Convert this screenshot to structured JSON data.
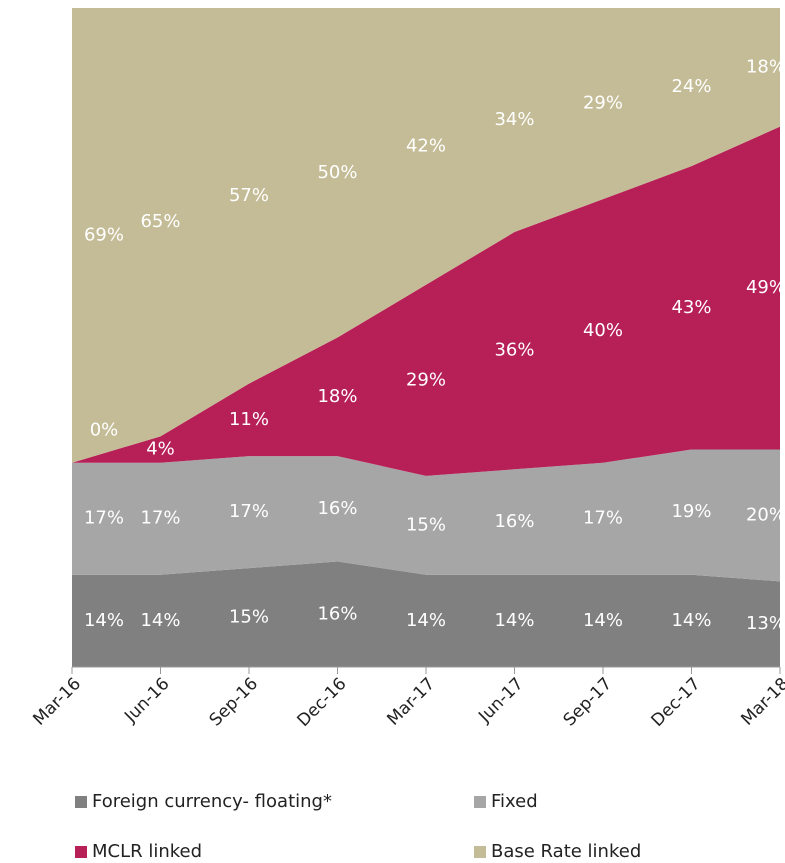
{
  "chart_data": {
    "type": "stacked_area",
    "categories": [
      "Mar-16",
      "Jun-16",
      "Sep-16",
      "Dec-16",
      "Mar-17",
      "Jun-17",
      "Sep-17",
      "Dec-17",
      "Mar-18"
    ],
    "ylim": [
      0,
      100
    ],
    "series": [
      {
        "name": "Foreign currency- floating*",
        "color": "#808080",
        "values": [
          14,
          14,
          15,
          16,
          14,
          14,
          14,
          14,
          13
        ],
        "value_labels": [
          "14%",
          "14%",
          "15%",
          "16%",
          "14%",
          "14%",
          "14%",
          "14%",
          "13%"
        ]
      },
      {
        "name": "Fixed",
        "color": "#a6a6a6",
        "values": [
          17,
          17,
          17,
          16,
          15,
          16,
          17,
          19,
          20
        ],
        "value_labels": [
          "17%",
          "17%",
          "17%",
          "16%",
          "15%",
          "16%",
          "17%",
          "19%",
          "20%"
        ]
      },
      {
        "name": "MCLR linked",
        "color": "#b71f57",
        "values": [
          0,
          4,
          11,
          18,
          29,
          36,
          40,
          43,
          49
        ],
        "value_labels": [
          "0%",
          "4%",
          "11%",
          "18%",
          "29%",
          "36%",
          "40%",
          "43%",
          "49%"
        ]
      },
      {
        "name": "Base Rate linked",
        "color": "#c4bc96",
        "values": [
          69,
          65,
          57,
          50,
          42,
          34,
          29,
          24,
          18
        ],
        "value_labels": [
          "69%",
          "65%",
          "57%",
          "50%",
          "42%",
          "34%",
          "29%",
          "24%",
          "18%"
        ]
      }
    ]
  }
}
